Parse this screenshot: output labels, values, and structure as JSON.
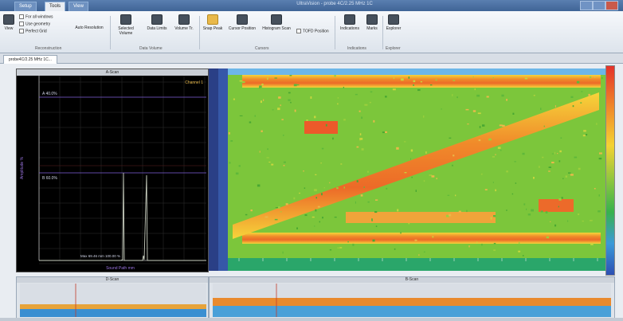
{
  "window": {
    "title": "UltraVision - probe 4C/2.25 MHz 1C",
    "tabs": [
      "Setup",
      "Tools",
      "View"
    ]
  },
  "ribbon": {
    "reconstruction": {
      "group_label": "Reconstruction",
      "view_label": "View",
      "options": [
        "For all windows",
        "Use geometry",
        "Perfect Grid"
      ],
      "auto_resolution": "Auto Resolution"
    },
    "data_volume": {
      "group_label": "Data Volume",
      "buttons": [
        "Selected Volume",
        "Data Limits",
        "Volume Tr."
      ]
    },
    "cursors": {
      "group_label": "Cursors",
      "buttons": [
        "Snap Peak",
        "Cursor Position",
        "Histogram Scan"
      ],
      "tofd_label": "TOFD Position"
    },
    "indications": {
      "group_label": "Indications",
      "buttons": [
        "Indications",
        "Marks"
      ]
    },
    "explorer": {
      "group_label": "Explorer",
      "buttons": [
        "Explorer"
      ]
    }
  },
  "document_tab": "probe4C/2.25 MHz 1C...",
  "ascan": {
    "title": "A-Scan",
    "channel": "Channel 1",
    "ylabel": "Amplitude %",
    "xlabel": "Sound Path mm",
    "gate_a": "A 40.0%",
    "gate_b": "B 60.0%",
    "readout": "Max 69.46 mm  100.00 %"
  },
  "bottom": {
    "left_title": "D-Scan",
    "right_title": "B-Scan"
  },
  "colors": {
    "background": "#000000",
    "trace": "#c9cfc0",
    "grid": "#2e2e2e",
    "gate_line": "#7a5bd6",
    "accent": "#e9b94a"
  }
}
